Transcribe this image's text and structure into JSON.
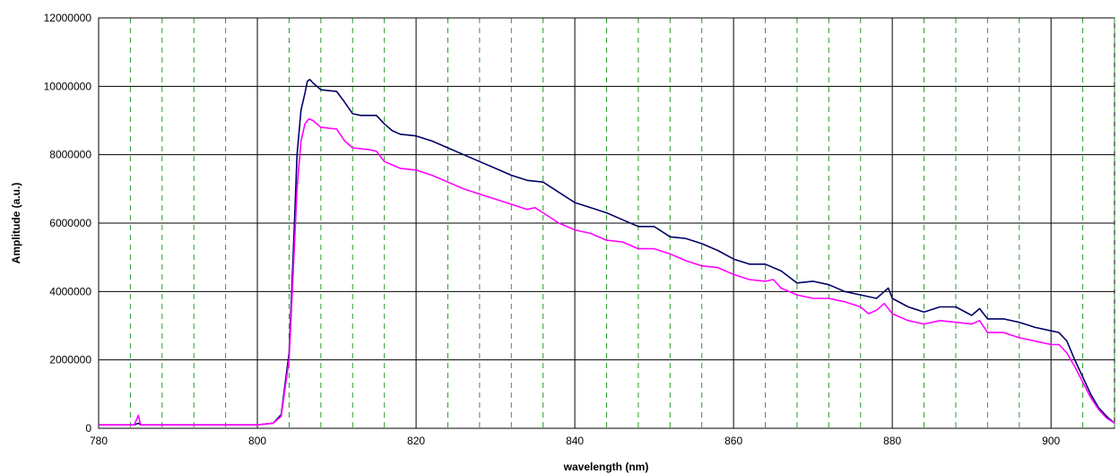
{
  "chart_data": {
    "type": "line",
    "title": "",
    "xlabel": "wavelength (nm)",
    "ylabel": "Amplitude (a.u.)",
    "xlim": [
      780,
      908
    ],
    "ylim": [
      0,
      12000000
    ],
    "x_ticks": [
      780,
      800,
      820,
      840,
      860,
      880,
      900
    ],
    "y_ticks": [
      0,
      2000000,
      4000000,
      6000000,
      8000000,
      10000000,
      12000000
    ],
    "x_tick_labels": [
      "780",
      "800",
      "820",
      "840",
      "860",
      "880",
      "900"
    ],
    "y_tick_labels": [
      "0",
      "2000000",
      "4000000",
      "6000000",
      "8000000",
      "10000000",
      "12000000"
    ],
    "major_grid": "solid black at x and y ticks",
    "minor_vertical_markers_nm": [
      784,
      788,
      792,
      796,
      804,
      808,
      812,
      816,
      824,
      828,
      832,
      836,
      844,
      848,
      852,
      856,
      864,
      868,
      872,
      876,
      884,
      888,
      892,
      896,
      904,
      908
    ],
    "minor_marker_color": "#2e9b2e",
    "series": [
      {
        "color": "#000066",
        "x": [
          780,
          784.5,
          785,
          785.3,
          786,
          800,
          802,
          803,
          804,
          804.5,
          805,
          805.5,
          806,
          806.3,
          806.6,
          807,
          807.5,
          808,
          810,
          810.8,
          812,
          813,
          815,
          816,
          817,
          818,
          820,
          822,
          824,
          826,
          828,
          830,
          832,
          834,
          836,
          838,
          840,
          842,
          844,
          846,
          848,
          850,
          852,
          854,
          856,
          858,
          860,
          862,
          864,
          866,
          868,
          870,
          872,
          874,
          876,
          878,
          879,
          879.5,
          880,
          882,
          884,
          886,
          888,
          890,
          891,
          892,
          894,
          896,
          898,
          900,
          901,
          902,
          903,
          904,
          905,
          906,
          907,
          908
        ],
        "y": [
          100000,
          100000,
          150000,
          100000,
          100000,
          100000,
          150000,
          400000,
          2200000,
          5000000,
          8000000,
          9300000,
          9800000,
          10150000,
          10200000,
          10100000,
          10000000,
          9900000,
          9850000,
          9600000,
          9200000,
          9150000,
          9150000,
          8900000,
          8700000,
          8600000,
          8550000,
          8400000,
          8200000,
          8000000,
          7800000,
          7600000,
          7400000,
          7250000,
          7200000,
          6900000,
          6600000,
          6450000,
          6300000,
          6100000,
          5900000,
          5900000,
          5600000,
          5550000,
          5400000,
          5200000,
          4950000,
          4800000,
          4800000,
          4600000,
          4250000,
          4300000,
          4200000,
          4000000,
          3900000,
          3800000,
          4000000,
          4100000,
          3800000,
          3550000,
          3400000,
          3550000,
          3550000,
          3300000,
          3500000,
          3200000,
          3200000,
          3100000,
          2950000,
          2850000,
          2800000,
          2550000,
          2000000,
          1500000,
          1000000,
          600000,
          350000,
          150000
        ]
      },
      {
        "color": "#ff00ff",
        "x": [
          780,
          784.5,
          785,
          785.3,
          786,
          800,
          802,
          803,
          804,
          804.5,
          805,
          805.5,
          806,
          806.5,
          807,
          808,
          810,
          811,
          812,
          814,
          815,
          816,
          818,
          820,
          822,
          824,
          826,
          828,
          830,
          832,
          834,
          835,
          836,
          838,
          840,
          842,
          844,
          846,
          848,
          850,
          852,
          854,
          856,
          858,
          860,
          862,
          864,
          865,
          866,
          868,
          870,
          872,
          874,
          876,
          877,
          878,
          879,
          880,
          882,
          884,
          886,
          888,
          890,
          891,
          892,
          894,
          896,
          898,
          900,
          901,
          902,
          903,
          904,
          905,
          906,
          907,
          908
        ],
        "y": [
          100000,
          100000,
          380000,
          100000,
          100000,
          100000,
          150000,
          350000,
          2000000,
          4500000,
          7000000,
          8400000,
          8900000,
          9050000,
          9000000,
          8800000,
          8750000,
          8400000,
          8200000,
          8150000,
          8100000,
          7800000,
          7600000,
          7550000,
          7400000,
          7200000,
          7000000,
          6850000,
          6700000,
          6550000,
          6400000,
          6450000,
          6300000,
          6000000,
          5800000,
          5700000,
          5500000,
          5450000,
          5250000,
          5250000,
          5100000,
          4900000,
          4750000,
          4700000,
          4500000,
          4350000,
          4300000,
          4350000,
          4100000,
          3900000,
          3800000,
          3800000,
          3700000,
          3550000,
          3350000,
          3450000,
          3650000,
          3350000,
          3150000,
          3050000,
          3150000,
          3100000,
          3050000,
          3150000,
          2800000,
          2800000,
          2650000,
          2550000,
          2450000,
          2450000,
          2200000,
          1800000,
          1350000,
          900000,
          550000,
          300000,
          150000
        ]
      }
    ]
  }
}
